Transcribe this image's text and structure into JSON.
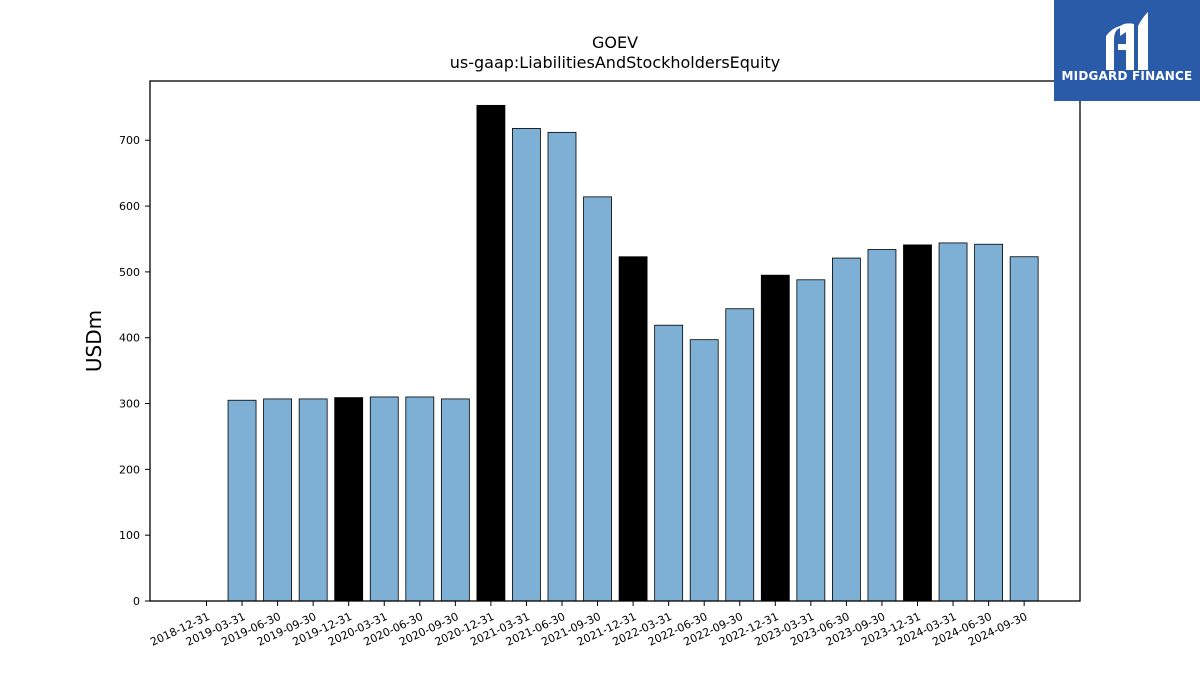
{
  "chart_data": {
    "type": "bar",
    "title": "GOEV",
    "subtitle": "us-gaap:LiabilitiesAndStockholdersEquity",
    "ylabel": "USDm",
    "xlabel": "",
    "ylim": [
      0,
      790
    ],
    "yticks": [
      0,
      100,
      200,
      300,
      400,
      500,
      600,
      700
    ],
    "categories": [
      "2018-12-31",
      "2019-03-31",
      "2019-06-30",
      "2019-09-30",
      "2019-12-31",
      "2020-03-31",
      "2020-06-30",
      "2020-09-30",
      "2020-12-31",
      "2021-03-31",
      "2021-06-30",
      "2021-09-30",
      "2021-12-31",
      "2022-03-31",
      "2022-06-30",
      "2022-09-30",
      "2022-12-31",
      "2023-03-31",
      "2023-06-30",
      "2023-09-30",
      "2023-12-31",
      "2024-03-31",
      "2024-06-30",
      "2024-09-30"
    ],
    "values": [
      null,
      305,
      307,
      307,
      309,
      310,
      310,
      307,
      753,
      718,
      712,
      614,
      523,
      419,
      397,
      444,
      495,
      488,
      521,
      534,
      541,
      544,
      542,
      523
    ],
    "colors": {
      "quarter": "#7eb0d5",
      "year_end": "#000000",
      "edge": "#000000"
    }
  },
  "logo": {
    "brand": "MIDGARD FINANCE",
    "icon": "midgard-m-logo-icon",
    "bg": "#2a5ba8"
  }
}
